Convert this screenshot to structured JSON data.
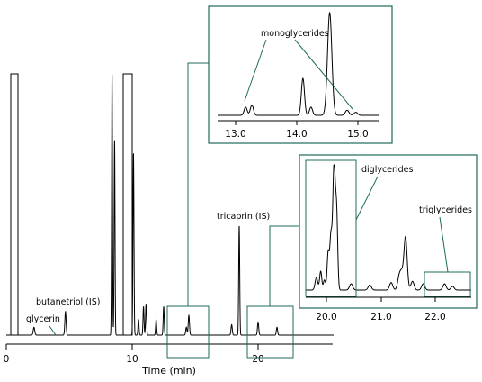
{
  "colors": {
    "trace": "#000000",
    "zoom_frame": "#1e6b5c",
    "background": "#ffffff"
  },
  "chart_data": {
    "type": "line",
    "xlabel": "Time (min)",
    "ylabel": "",
    "grid": false,
    "main": {
      "x_ticks": [
        "0",
        "10",
        "20"
      ],
      "x_tick_values": [
        0,
        10,
        20
      ],
      "xlim": [
        0,
        26
      ],
      "peaks": [
        {
          "x": 0.7,
          "h": 1.0,
          "w": 0.04,
          "flat": true
        },
        {
          "x": 0.95,
          "h": 1.0,
          "w": 0.04,
          "flat": true
        },
        {
          "x": 2.2,
          "h": 0.03,
          "w": 0.06
        },
        {
          "x": 4.7,
          "h": 0.09,
          "w": 0.05
        },
        {
          "x": 8.4,
          "h": 1.0,
          "w": 0.035
        },
        {
          "x": 8.6,
          "h": 0.75,
          "w": 0.035
        },
        {
          "x": 9.6,
          "h": 1.0,
          "w": 0.05,
          "flat": true
        },
        {
          "x": 10.1,
          "h": 0.7,
          "w": 0.04
        },
        {
          "x": 10.5,
          "h": 0.06,
          "w": 0.04
        },
        {
          "x": 10.9,
          "h": 0.11,
          "w": 0.04
        },
        {
          "x": 11.1,
          "h": 0.12,
          "w": 0.04
        },
        {
          "x": 11.9,
          "h": 0.06,
          "w": 0.04
        },
        {
          "x": 12.5,
          "h": 0.11,
          "w": 0.04
        },
        {
          "x": 14.3,
          "h": 0.03,
          "w": 0.05
        },
        {
          "x": 14.5,
          "h": 0.075,
          "w": 0.05
        },
        {
          "x": 17.9,
          "h": 0.04,
          "w": 0.05
        },
        {
          "x": 18.5,
          "h": 0.42,
          "w": 0.04
        },
        {
          "x": 20.0,
          "h": 0.05,
          "w": 0.05
        },
        {
          "x": 21.5,
          "h": 0.03,
          "w": 0.05
        }
      ],
      "labels": [
        {
          "text": "glycerin",
          "x": 2.2
        },
        {
          "text": "butanetriol (IS)",
          "x": 4.7
        },
        {
          "text": "tricaprin (IS)",
          "x": 18.5
        }
      ]
    },
    "inset_mono": {
      "x_ticks": [
        "13.0",
        "14.0",
        "15.0"
      ],
      "x_tick_values": [
        13.0,
        14.0,
        15.0
      ],
      "xlim": [
        12.7,
        15.3
      ],
      "label": "monoglycerides",
      "peaks": [
        {
          "x": 13.15,
          "h": 0.08,
          "w": 0.025
        },
        {
          "x": 13.25,
          "h": 0.1,
          "w": 0.025
        },
        {
          "x": 14.07,
          "h": 0.36,
          "w": 0.025
        },
        {
          "x": 14.2,
          "h": 0.08,
          "w": 0.025
        },
        {
          "x": 14.5,
          "h": 1.0,
          "w": 0.035
        },
        {
          "x": 14.78,
          "h": 0.05,
          "w": 0.03
        },
        {
          "x": 14.92,
          "h": 0.03,
          "w": 0.03
        }
      ]
    },
    "inset_di_tri": {
      "x_ticks": [
        "20.0",
        "21.0",
        "22.0"
      ],
      "x_tick_values": [
        20.0,
        21.0,
        22.0
      ],
      "xlim": [
        19.6,
        22.7
      ],
      "labels": [
        "diglycerides",
        "triglycerides"
      ],
      "peaks": [
        {
          "x": 19.8,
          "h": 0.1,
          "w": 0.025
        },
        {
          "x": 19.88,
          "h": 0.15,
          "w": 0.02
        },
        {
          "x": 19.95,
          "h": 0.08,
          "w": 0.02
        },
        {
          "x": 20.02,
          "h": 0.3,
          "w": 0.02
        },
        {
          "x": 20.07,
          "h": 0.4,
          "w": 0.02
        },
        {
          "x": 20.13,
          "h": 1.0,
          "w": 0.025
        },
        {
          "x": 20.18,
          "h": 0.55,
          "w": 0.02
        },
        {
          "x": 20.45,
          "h": 0.05,
          "w": 0.03
        },
        {
          "x": 20.8,
          "h": 0.04,
          "w": 0.03
        },
        {
          "x": 21.2,
          "h": 0.06,
          "w": 0.03
        },
        {
          "x": 21.35,
          "h": 0.1,
          "w": 0.03
        },
        {
          "x": 21.4,
          "h": 0.12,
          "w": 0.03
        },
        {
          "x": 21.47,
          "h": 0.42,
          "w": 0.03
        },
        {
          "x": 21.6,
          "h": 0.07,
          "w": 0.03
        },
        {
          "x": 21.8,
          "h": 0.05,
          "w": 0.03
        },
        {
          "x": 22.2,
          "h": 0.05,
          "w": 0.03
        },
        {
          "x": 22.35,
          "h": 0.03,
          "w": 0.03
        }
      ]
    }
  }
}
